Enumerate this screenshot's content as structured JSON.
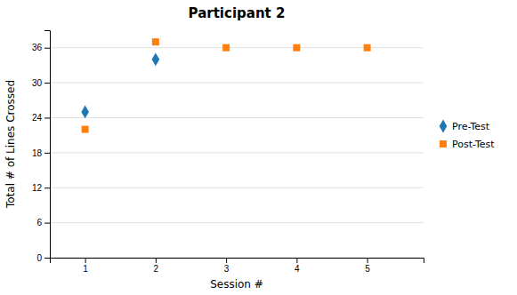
{
  "chart_data": {
    "type": "scatter",
    "title": "Participant 2",
    "xlabel": "Session #",
    "ylabel": "Total # of Lines Crossed",
    "series": [
      {
        "name": "Pre-Test",
        "marker": "diamond",
        "x": [
          1,
          2
        ],
        "values": [
          25,
          34
        ]
      },
      {
        "name": "Post-Test",
        "marker": "square",
        "x": [
          1,
          2,
          3,
          4,
          5
        ],
        "values": [
          22,
          37,
          36,
          36,
          36
        ]
      }
    ],
    "xlim": [
      0.5,
      5.8
    ],
    "xticks": [
      1,
      2,
      3,
      4,
      5
    ],
    "ylim": [
      0,
      39
    ],
    "yticks": [
      0,
      6,
      12,
      18,
      24,
      30,
      36
    ],
    "grid": "y",
    "legend": "right"
  }
}
